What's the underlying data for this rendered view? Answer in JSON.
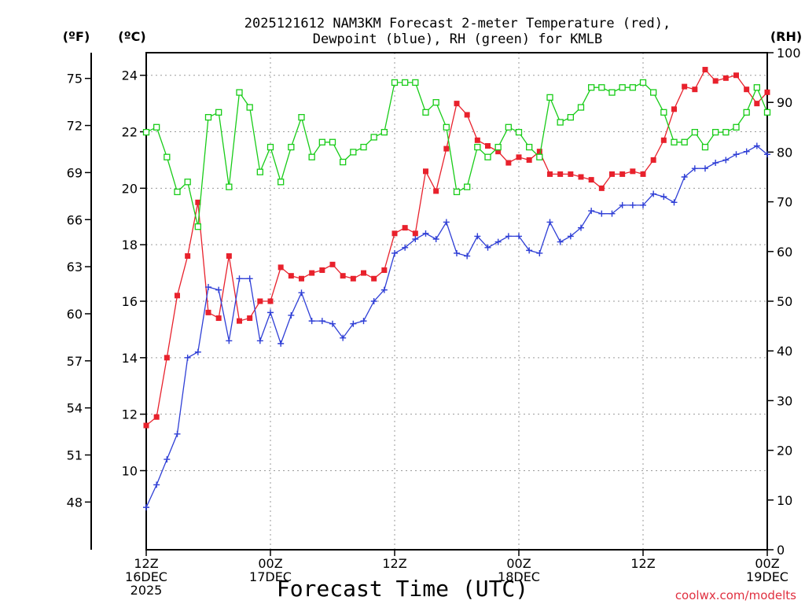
{
  "chart_data": {
    "type": "line",
    "title_line1": "2025121612 NAM3KM Forecast 2-meter Temperature (red),",
    "title_line2": "Dewpoint (blue), RH (green) for KMLB",
    "xlabel": "Forecast Time (UTC)",
    "credit": "coolwx.com/modelts",
    "axes": {
      "left_outer_unit": "(ºF)",
      "left_inner_unit": "(ºC)",
      "right_unit": "(RH)",
      "celsius_range": [
        7.2,
        24.8
      ],
      "rh_range": [
        0,
        100
      ],
      "fahrenheit_ticks": [
        "48",
        "51",
        "54",
        "57",
        "60",
        "63",
        "66",
        "69",
        "72",
        "75"
      ],
      "celsius_ticks": [
        "10",
        "12",
        "14",
        "16",
        "18",
        "20",
        "22",
        "24"
      ],
      "rh_ticks": [
        "0",
        "10",
        "20",
        "30",
        "40",
        "50",
        "60",
        "70",
        "80",
        "90",
        "100"
      ],
      "x_range_hours": [
        0,
        60
      ],
      "x_ticks": [
        {
          "hour": 0,
          "lines": [
            "12Z",
            "16DEC",
            "2025"
          ]
        },
        {
          "hour": 12,
          "lines": [
            "00Z",
            "17DEC"
          ]
        },
        {
          "hour": 24,
          "lines": [
            "12Z"
          ]
        },
        {
          "hour": 36,
          "lines": [
            "00Z",
            "18DEC"
          ]
        },
        {
          "hour": 48,
          "lines": [
            "12Z"
          ]
        },
        {
          "hour": 60,
          "lines": [
            "00Z",
            "19DEC"
          ]
        }
      ],
      "grid": true
    },
    "series": [
      {
        "name": "Temperature",
        "unit": "C",
        "color": "#e8212c",
        "marker": "filled-square",
        "values": [
          11.6,
          11.9,
          14.0,
          16.2,
          17.6,
          19.5,
          15.6,
          15.4,
          17.6,
          15.3,
          15.4,
          16.0,
          16.0,
          17.2,
          16.9,
          16.8,
          17.0,
          17.1,
          17.3,
          16.9,
          16.8,
          17.0,
          16.8,
          17.1,
          18.4,
          18.6,
          18.4,
          20.6,
          19.9,
          21.4,
          23.0,
          22.6,
          21.7,
          21.5,
          21.3,
          20.9,
          21.1,
          21.0,
          21.3,
          20.5,
          20.5,
          20.5,
          20.4,
          20.3,
          20.0,
          20.5,
          20.5,
          20.6,
          20.5,
          21.0,
          21.7,
          22.8,
          23.6,
          23.5,
          24.2,
          23.8,
          23.9,
          24.0,
          23.5,
          23.0,
          23.4
        ]
      },
      {
        "name": "Dewpoint",
        "unit": "C",
        "color": "#2f3fd6",
        "marker": "plus",
        "values": [
          8.7,
          9.5,
          10.4,
          11.3,
          14.0,
          14.2,
          16.5,
          16.4,
          14.6,
          16.8,
          16.8,
          14.6,
          15.6,
          14.5,
          15.5,
          16.3,
          15.3,
          15.3,
          15.2,
          14.7,
          15.2,
          15.3,
          16.0,
          16.4,
          17.7,
          17.9,
          18.2,
          18.4,
          18.2,
          18.8,
          17.7,
          17.6,
          18.3,
          17.9,
          18.1,
          18.3,
          18.3,
          17.8,
          17.7,
          18.8,
          18.1,
          18.3,
          18.6,
          19.2,
          19.1,
          19.1,
          19.4,
          19.4,
          19.4,
          19.8,
          19.7,
          19.5,
          20.4,
          20.7,
          20.7,
          20.9,
          21.0,
          21.2,
          21.3,
          21.5,
          21.2
        ]
      },
      {
        "name": "RH",
        "unit": "%",
        "color": "#18cc18",
        "marker": "open-square",
        "values": [
          84,
          85,
          79,
          72,
          74,
          65,
          87,
          88,
          73,
          92,
          89,
          76,
          81,
          74,
          81,
          87,
          79,
          82,
          82,
          78,
          80,
          81,
          83,
          84,
          94,
          94,
          94,
          88,
          90,
          85,
          72,
          73,
          81,
          79,
          81,
          85,
          84,
          81,
          79,
          91,
          86,
          87,
          89,
          93,
          93,
          92,
          93,
          93,
          94,
          92,
          88,
          82,
          82,
          84,
          81,
          84,
          84,
          85,
          88,
          93,
          88
        ]
      }
    ]
  }
}
